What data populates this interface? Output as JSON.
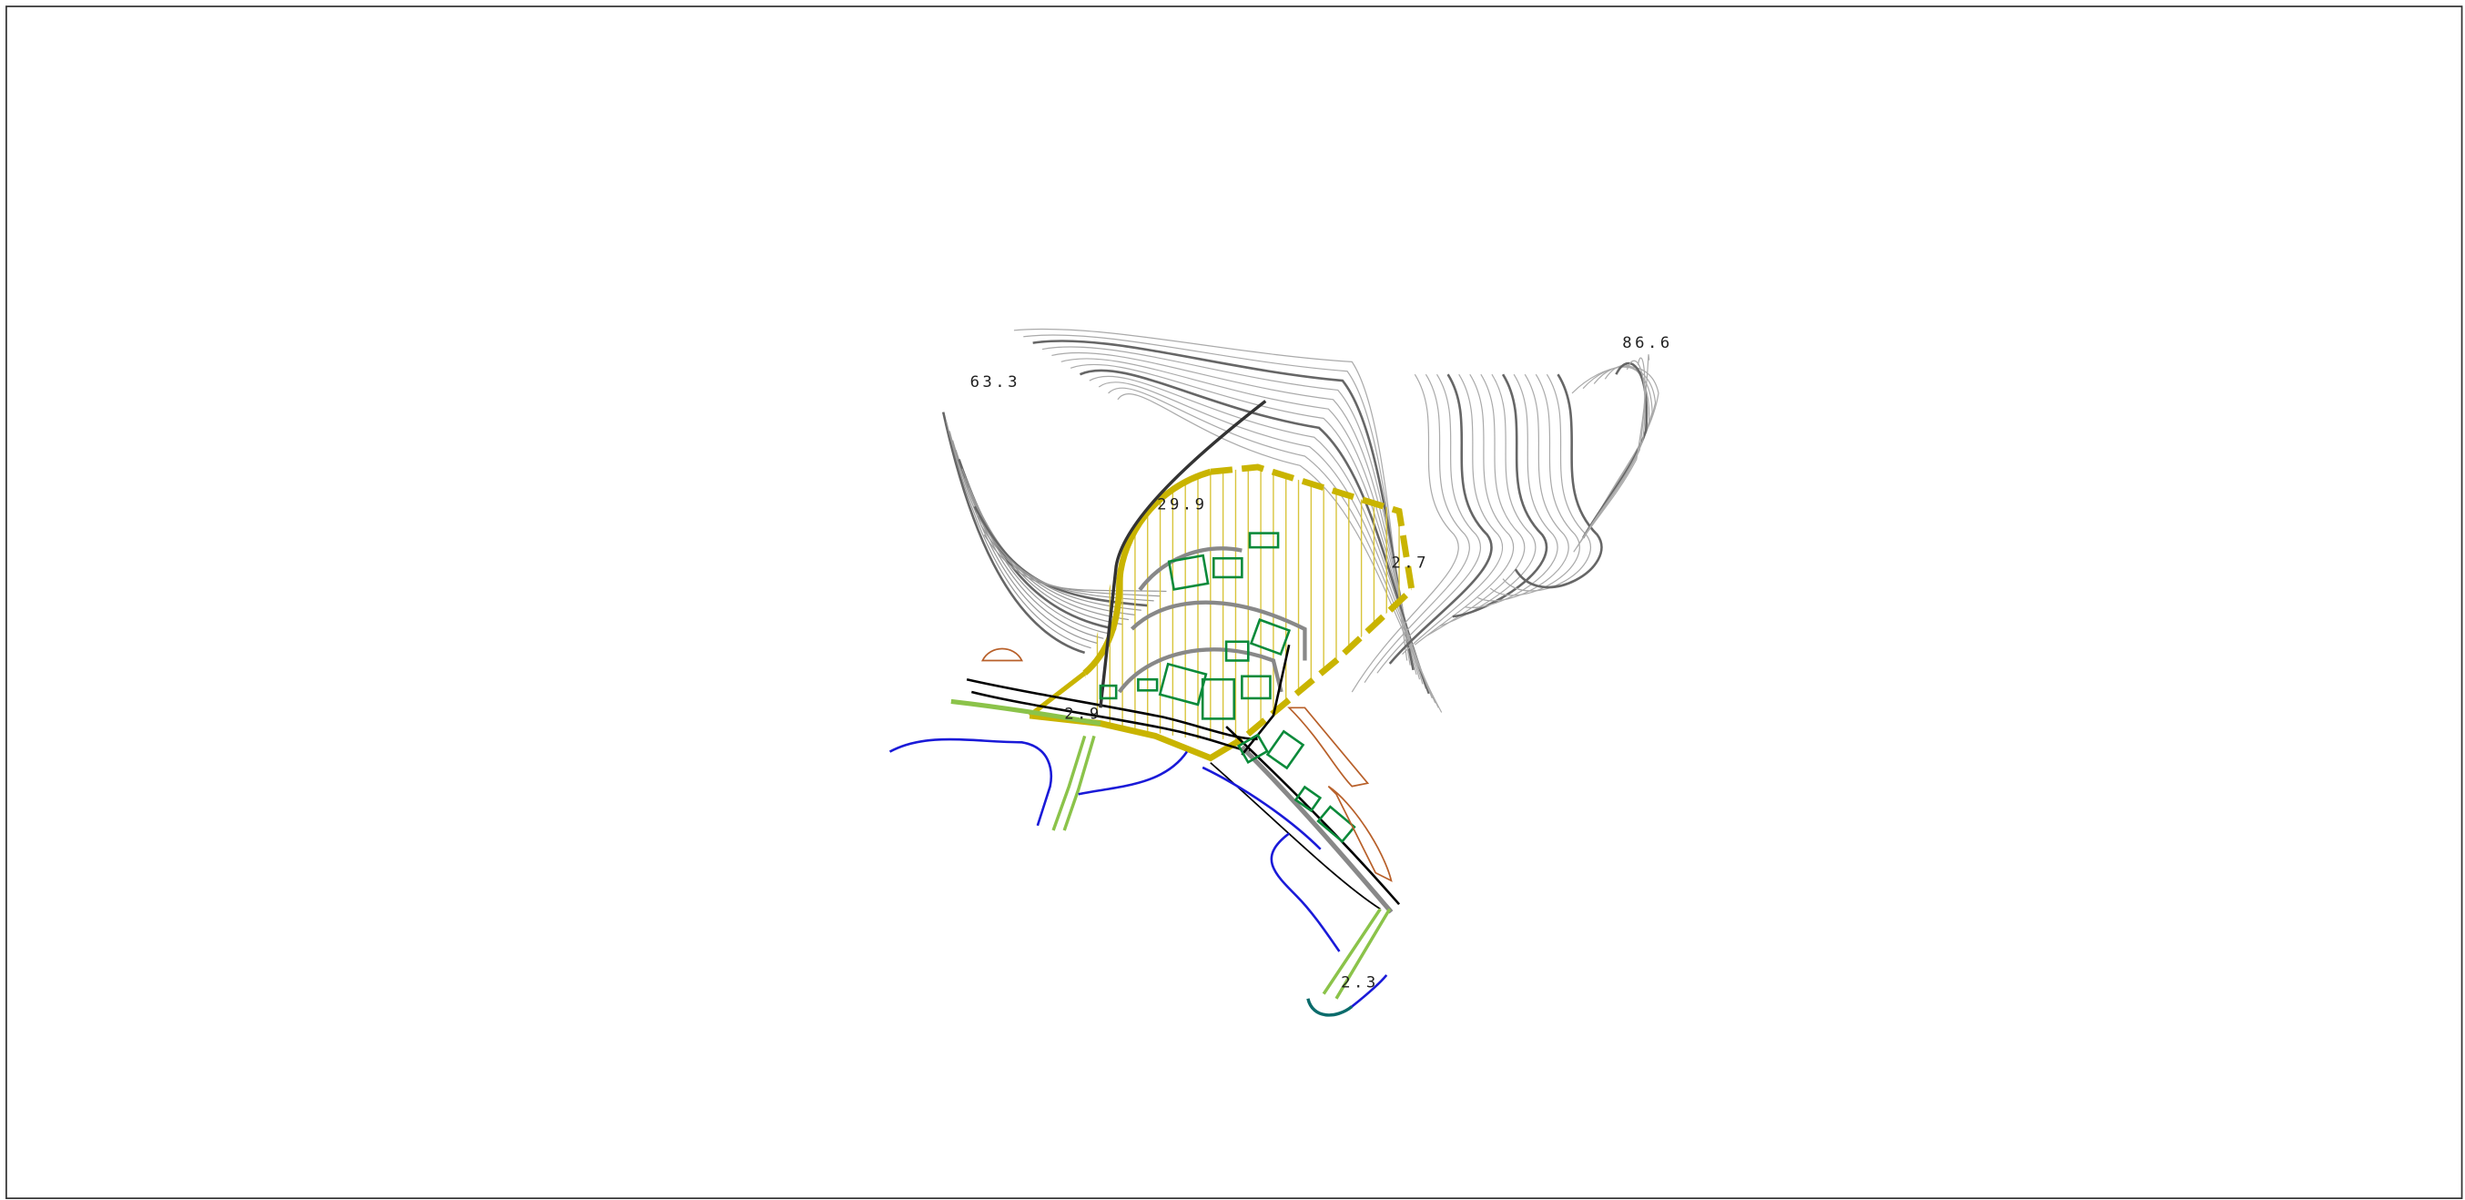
{
  "labels": [
    "63.3",
    "86.6",
    "29.9",
    "2.7",
    "2.9",
    "2.3"
  ]
}
